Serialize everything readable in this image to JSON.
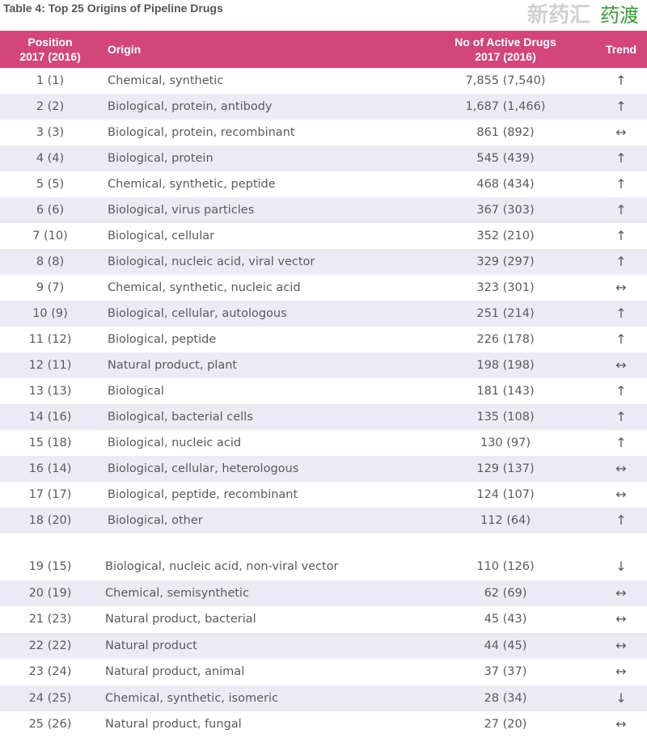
{
  "title": "Table 4: Top 25 Origins of Pipeline Drugs",
  "header": {
    "position": "Position\n2017 (2016)",
    "origin": "Origin",
    "count": "No of Active Drugs\n2017 (2016)",
    "trend": "Trend"
  },
  "colors": {
    "header_bg": "#d2467a",
    "stripe": "#ecebf5"
  },
  "rows": [
    {
      "position": "1  (1)",
      "origin": "Chemical, synthetic",
      "count": "7,855  (7,540)",
      "trend": "↑"
    },
    {
      "position": "2  (2)",
      "origin": "Biological, protein, antibody",
      "count": "1,687  (1,466)",
      "trend": "↑"
    },
    {
      "position": "3  (3)",
      "origin": "Biological, protein, recombinant",
      "count": "861  (892)",
      "trend": "↔"
    },
    {
      "position": "4  (4)",
      "origin": "Biological, protein",
      "count": "545  (439)",
      "trend": "↑"
    },
    {
      "position": "5  (5)",
      "origin": "Chemical, synthetic, peptide",
      "count": "468  (434)",
      "trend": "↑"
    },
    {
      "position": "6  (6)",
      "origin": "Biological, virus particles",
      "count": "367  (303)",
      "trend": "↑"
    },
    {
      "position": "7  (10)",
      "origin": "Biological, cellular",
      "count": "352  (210)",
      "trend": "↑"
    },
    {
      "position": "8  (8)",
      "origin": "Biological, nucleic acid, viral vector",
      "count": "329  (297)",
      "trend": "↑"
    },
    {
      "position": "9  (7)",
      "origin": "Chemical, synthetic, nucleic acid",
      "count": "323  (301)",
      "trend": "↔"
    },
    {
      "position": "10  (9)",
      "origin": "Biological, cellular, autologous",
      "count": "251  (214)",
      "trend": "↑"
    },
    {
      "position": "11  (12)",
      "origin": "Biological, peptide",
      "count": "226  (178)",
      "trend": "↑"
    },
    {
      "position": "12  (11)",
      "origin": "Natural product, plant",
      "count": "198  (198)",
      "trend": "↔"
    },
    {
      "position": "13  (13)",
      "origin": "Biological",
      "count": "181  (143)",
      "trend": "↑"
    },
    {
      "position": "14  (16)",
      "origin": "Biological, bacterial cells",
      "count": "135  (108)",
      "trend": "↑"
    },
    {
      "position": "15  (18)",
      "origin": "Biological, nucleic acid",
      "count": "130  (97)",
      "trend": "↑"
    },
    {
      "position": "16  (14)",
      "origin": "Biological, cellular, heterologous",
      "count": "129  (137)",
      "trend": "↔"
    },
    {
      "position": "17  (17)",
      "origin": "Biological, peptide, recombinant",
      "count": "124  (107)",
      "trend": "↔"
    },
    {
      "position": "18  (20)",
      "origin": "Biological, other",
      "count": "112  (64)",
      "trend": "↑"
    },
    {
      "position": "19  (15)",
      "origin": "Biological, nucleic acid, non-viral vector",
      "count": "110  (126)",
      "trend": "↓"
    },
    {
      "position": "20  (19)",
      "origin": "Chemical, semisynthetic",
      "count": "62  (69)",
      "trend": "↔"
    },
    {
      "position": "21  (23)",
      "origin": "Natural product, bacterial",
      "count": "45  (43)",
      "trend": "↔"
    },
    {
      "position": "22  (22)",
      "origin": "Natural product",
      "count": "44  (45)",
      "trend": "↔"
    },
    {
      "position": "23  (24)",
      "origin": "Natural product, animal",
      "count": "37  (37)",
      "trend": "↔"
    },
    {
      "position": "24  (25)",
      "origin": "Chemical, synthetic, isomeric",
      "count": "28  (34)",
      "trend": "↓"
    },
    {
      "position": "25  (26)",
      "origin": "Natural product, fungal",
      "count": "27  (20)",
      "trend": "↔"
    }
  ],
  "watermark": {
    "line1": "新药汇",
    "line2": "药渡"
  }
}
